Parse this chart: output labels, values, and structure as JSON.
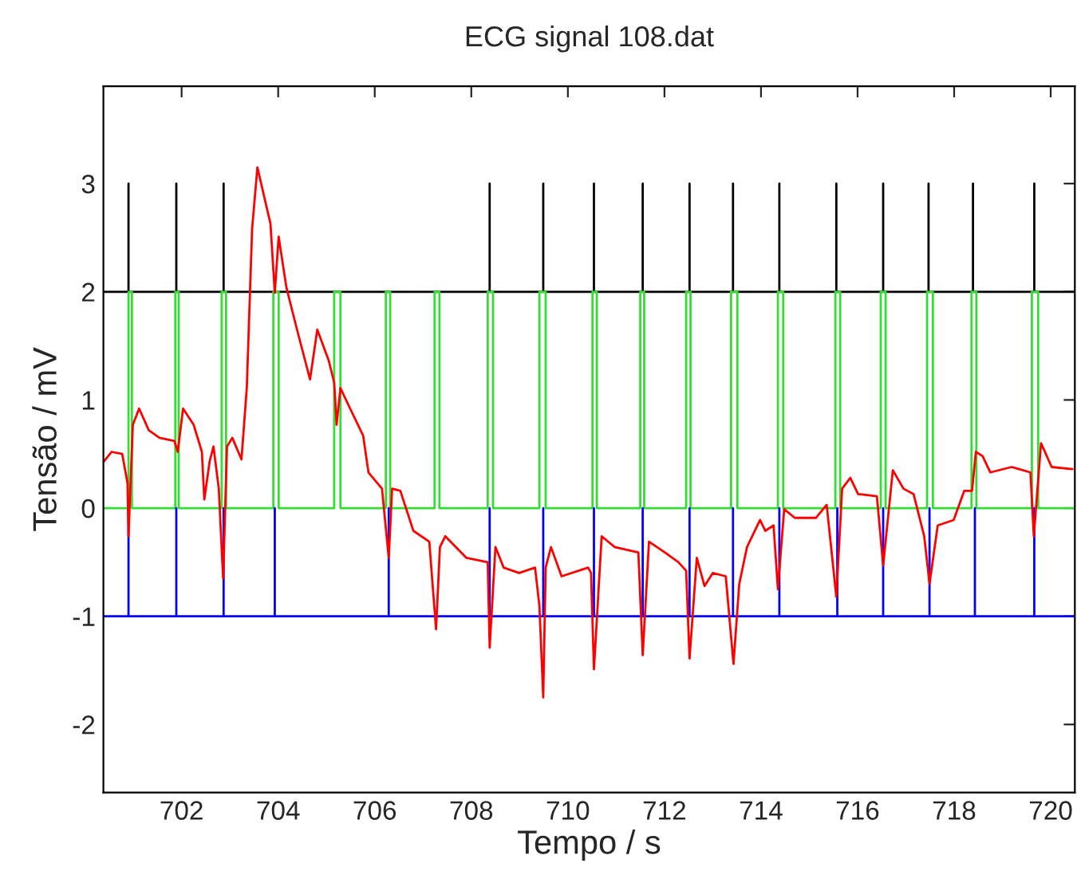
{
  "chart_data": {
    "type": "line",
    "title": "ECG signal 108.dat",
    "xlabel": "Tempo / s",
    "ylabel": "Tensão / mV",
    "xlim": [
      700.38,
      720.5
    ],
    "ylim": [
      -2.63,
      3.9
    ],
    "xticks": [
      702,
      704,
      706,
      708,
      710,
      712,
      714,
      716,
      718,
      720
    ],
    "yticks": [
      -2,
      -1,
      0,
      1,
      2,
      3
    ],
    "grid": false,
    "legend": false,
    "series": [
      {
        "color": "#000000",
        "x": [
          700.38,
          700.9,
          700.9,
          700.9,
          701.89,
          701.89,
          701.89,
          702.87,
          702.87,
          702.87,
          708.38,
          708.38,
          708.38,
          709.49,
          709.49,
          709.49,
          710.54,
          710.54,
          710.54,
          711.55,
          711.55,
          711.55,
          712.52,
          712.52,
          712.52,
          713.42,
          713.42,
          713.42,
          714.38,
          714.38,
          714.38,
          715.56,
          715.56,
          715.56,
          716.53,
          716.53,
          716.53,
          717.47,
          717.47,
          717.47,
          718.39,
          718.39,
          718.39,
          719.66,
          719.66,
          719.66,
          720.5
        ],
        "values": [
          2,
          2,
          3,
          2,
          2,
          3,
          2,
          2,
          3,
          2,
          2,
          3,
          2,
          2,
          3,
          2,
          2,
          3,
          2,
          2,
          3,
          2,
          2,
          3,
          2,
          2,
          3,
          2,
          2,
          3,
          2,
          2,
          3,
          2,
          2,
          3,
          2,
          2,
          3,
          2,
          2,
          3,
          2,
          2,
          3,
          2,
          2
        ]
      },
      {
        "color": "#33dd33",
        "x": [
          700.38,
          700.9,
          700.9,
          700.97,
          700.97,
          701.87,
          701.87,
          701.94,
          701.94,
          702.83,
          702.83,
          702.92,
          702.92,
          703.9,
          703.9,
          704.01,
          704.01,
          705.16,
          705.16,
          705.29,
          705.29,
          706.23,
          706.23,
          706.32,
          706.32,
          707.24,
          707.24,
          707.34,
          707.34,
          708.34,
          708.34,
          708.45,
          708.45,
          709.41,
          709.41,
          709.54,
          709.54,
          710.51,
          710.51,
          710.6,
          710.6,
          711.5,
          711.5,
          711.58,
          711.58,
          712.45,
          712.45,
          712.54,
          712.54,
          713.38,
          713.38,
          713.51,
          713.51,
          714.35,
          714.35,
          714.46,
          714.46,
          715.54,
          715.54,
          715.64,
          715.64,
          716.48,
          716.48,
          716.58,
          716.58,
          717.44,
          717.44,
          717.56,
          717.56,
          718.36,
          718.36,
          718.46,
          718.46,
          719.61,
          719.61,
          719.74,
          719.74,
          720.5
        ],
        "values": [
          0,
          0,
          2,
          2,
          0,
          0,
          2,
          2,
          0,
          0,
          2,
          2,
          0,
          0,
          2,
          2,
          0,
          0,
          2,
          2,
          0,
          0,
          2,
          2,
          0,
          0,
          2,
          2,
          0,
          0,
          2,
          2,
          0,
          0,
          2,
          2,
          0,
          0,
          2,
          2,
          0,
          0,
          2,
          2,
          0,
          0,
          2,
          2,
          0,
          0,
          2,
          2,
          0,
          0,
          2,
          2,
          0,
          0,
          2,
          2,
          0,
          0,
          2,
          2,
          0,
          0,
          2,
          2,
          0,
          0,
          2,
          2,
          0,
          0,
          2,
          2,
          0,
          0
        ]
      },
      {
        "color": "#0000ff",
        "x": [
          700.38,
          700.9,
          700.9,
          700.9,
          701.89,
          701.89,
          701.89,
          702.87,
          702.87,
          702.87,
          703.93,
          703.93,
          703.93,
          706.29,
          706.29,
          706.29,
          708.38,
          708.38,
          708.38,
          709.49,
          709.49,
          709.49,
          710.54,
          710.54,
          710.54,
          711.55,
          711.55,
          711.55,
          712.52,
          712.52,
          712.52,
          713.42,
          713.42,
          713.42,
          714.38,
          714.38,
          714.38,
          715.58,
          715.58,
          715.58,
          716.53,
          716.53,
          716.53,
          717.49,
          717.49,
          717.49,
          718.43,
          718.43,
          718.43,
          719.66,
          719.66,
          719.66,
          720.5
        ],
        "values": [
          -1,
          -1,
          0,
          -1,
          -1,
          0,
          -1,
          -1,
          0,
          -1,
          -1,
          0,
          -1,
          -1,
          0,
          -1,
          -1,
          0,
          -1,
          -1,
          0,
          -1,
          -1,
          0,
          -1,
          -1,
          0,
          -1,
          -1,
          0,
          -1,
          -1,
          0,
          -1,
          -1,
          0,
          -1,
          -1,
          0,
          -1,
          -1,
          0,
          -1,
          -1,
          0,
          -1,
          -1,
          0,
          -1,
          -1,
          0,
          -1,
          -1
        ]
      },
      {
        "color": "#ff0000",
        "x": [
          700.39,
          700.55,
          700.77,
          700.88,
          700.9,
          700.99,
          701.12,
          701.32,
          701.54,
          701.85,
          701.92,
          702.03,
          702.25,
          702.42,
          702.47,
          702.58,
          702.66,
          702.77,
          702.86,
          702.94,
          703.05,
          703.24,
          703.35,
          703.46,
          703.57,
          703.71,
          703.84,
          703.93,
          704.01,
          704.17,
          704.39,
          704.66,
          704.81,
          705.05,
          705.16,
          705.21,
          705.29,
          705.49,
          705.76,
          705.87,
          706.15,
          706.29,
          706.36,
          706.53,
          706.8,
          707.13,
          707.27,
          707.35,
          707.46,
          707.9,
          708.34,
          708.38,
          708.5,
          708.67,
          708.99,
          709.32,
          709.41,
          709.49,
          709.54,
          709.65,
          709.87,
          710.42,
          710.48,
          710.54,
          710.7,
          710.97,
          711.46,
          711.55,
          711.68,
          712.01,
          712.29,
          712.45,
          712.52,
          712.67,
          712.83,
          713.0,
          713.27,
          713.43,
          713.55,
          713.71,
          713.98,
          714.09,
          714.26,
          714.35,
          714.48,
          714.7,
          715.14,
          715.36,
          715.56,
          715.68,
          715.85,
          716.01,
          716.4,
          716.53,
          716.73,
          716.95,
          717.16,
          717.38,
          717.49,
          717.66,
          717.99,
          718.21,
          718.37,
          718.45,
          718.59,
          718.75,
          719.19,
          719.58,
          719.65,
          719.8,
          720.02,
          720.45
        ],
        "values": [
          0.43,
          0.52,
          0.5,
          0.23,
          -0.26,
          0.77,
          0.92,
          0.72,
          0.65,
          0.62,
          0.52,
          0.92,
          0.77,
          0.52,
          0.08,
          0.43,
          0.57,
          0.18,
          -0.65,
          0.57,
          0.65,
          0.45,
          1.11,
          2.58,
          3.15,
          2.88,
          2.63,
          1.99,
          2.51,
          2.04,
          1.65,
          1.19,
          1.65,
          1.36,
          1.16,
          0.77,
          1.11,
          0.92,
          0.67,
          0.33,
          0.18,
          -0.46,
          0.18,
          0.16,
          -0.21,
          -0.31,
          -1.12,
          -0.36,
          -0.26,
          -0.46,
          -0.5,
          -1.29,
          -0.36,
          -0.55,
          -0.6,
          -0.55,
          -0.9,
          -1.75,
          -0.55,
          -0.36,
          -0.63,
          -0.55,
          -0.6,
          -1.49,
          -0.26,
          -0.36,
          -0.41,
          -1.36,
          -0.31,
          -0.41,
          -0.5,
          -0.58,
          -1.39,
          -0.46,
          -0.72,
          -0.6,
          -0.63,
          -1.44,
          -0.7,
          -0.36,
          -0.11,
          -0.21,
          -0.16,
          -0.75,
          -0.01,
          -0.09,
          -0.09,
          0.03,
          -0.82,
          0.18,
          0.28,
          0.13,
          0.11,
          -0.53,
          0.35,
          0.18,
          0.13,
          -0.26,
          -0.7,
          -0.16,
          -0.11,
          0.16,
          0.16,
          0.52,
          0.48,
          0.33,
          0.38,
          0.33,
          -0.26,
          0.6,
          0.38,
          0.36
        ]
      }
    ]
  }
}
